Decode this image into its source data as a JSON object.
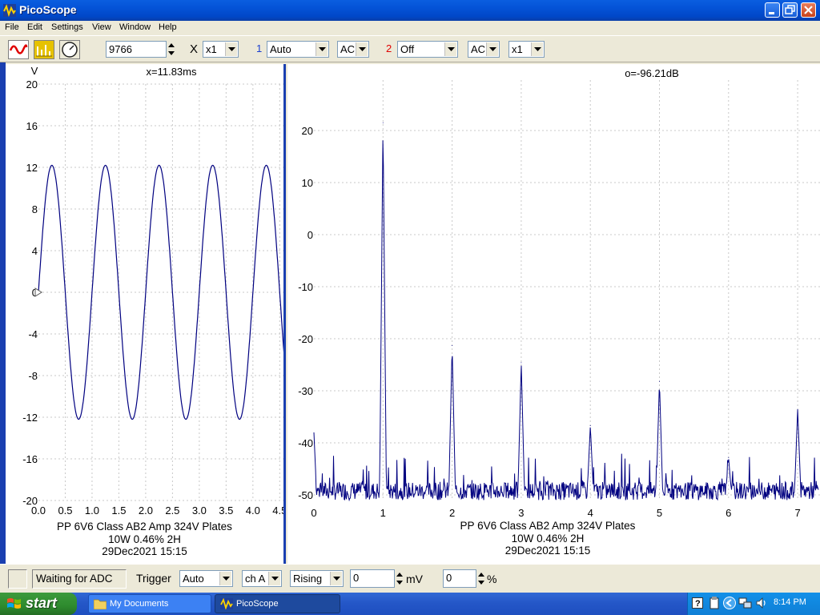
{
  "window": {
    "title": "PicoScope"
  },
  "menu": [
    "File",
    "Edit",
    "Settings",
    "View",
    "Window",
    "Help"
  ],
  "toolbar": {
    "timebase_value": "9766",
    "x_symbol": "X",
    "x_multiplier": "x1",
    "ch1_number": "1",
    "ch1_range": "Auto",
    "ch1_coupling": "AC",
    "ch2_number": "2",
    "ch2_range": "Off",
    "ch2_coupling": "AC",
    "ch2_multiplier": "x1",
    "ch1_color": "#1a3fd0",
    "ch2_color": "#e00000"
  },
  "scope_view": {
    "unit_label": "V",
    "cursor_readout": "x=11.83ms",
    "zero_marker": "0",
    "caption": [
      "PP 6V6 Class AB2 Amp 324V Plates",
      "10W 0.46% 2H",
      "29Dec2021  15:15"
    ]
  },
  "spectrum_view": {
    "cursor_readout": "o=-96.21dB",
    "caption": [
      "PP 6V6 Class AB2 Amp 324V Plates",
      "10W 0.46% 2H",
      "29Dec2021  15:15"
    ]
  },
  "chart_data": [
    {
      "type": "line",
      "xlim": [
        0,
        4.6
      ],
      "ylim": [
        -20,
        20
      ],
      "x_ticks": [
        "0.0",
        "0.5",
        "1.0",
        "1.5",
        "2.0",
        "2.5",
        "3.0",
        "3.5",
        "4.0",
        "4.5"
      ],
      "y_ticks": [
        "20",
        "16",
        "12",
        "8",
        "4",
        "0",
        "-4",
        "-8",
        "-12",
        "-16",
        "-20"
      ],
      "ylabel": "V",
      "grid": true,
      "series": [
        {
          "waveform": "sine",
          "amplitude": 12.2,
          "period": 1.0,
          "x_at_zero_crossing": 0.0
        }
      ],
      "line_color": "#000080"
    },
    {
      "type": "line",
      "xlim": [
        0,
        7.3
      ],
      "ylim": [
        -51,
        25
      ],
      "x_ticks": [
        "0",
        "1",
        "2",
        "3",
        "4",
        "5",
        "6",
        "7"
      ],
      "y_ticks": [
        "20",
        "10",
        "0",
        "-10",
        "-20",
        "-30",
        "-40",
        "-50"
      ],
      "grid": true,
      "floor": -51,
      "harmonics": [
        {
          "x": 1,
          "y": 21.5
        },
        {
          "x": 2,
          "y": -21.3
        },
        {
          "x": 3,
          "y": -24.6
        },
        {
          "x": 4,
          "y": -36.7
        },
        {
          "x": 5,
          "y": -28.2
        },
        {
          "x": 6,
          "y": -42.8
        },
        {
          "x": 7,
          "y": -33.6
        }
      ],
      "line_color": "#000080"
    }
  ],
  "status": {
    "adc_text": "Waiting for ADC",
    "trigger_label": "Trigger",
    "trigger_mode": "Auto",
    "trigger_channel": "ch A",
    "trigger_edge": "Rising",
    "threshold_value": "0",
    "threshold_unit": "mV",
    "delay_value": "0",
    "delay_unit": "%"
  },
  "taskbar": {
    "start_label": "start",
    "tasks": [
      "My Documents",
      "PicoScope"
    ],
    "time": "8:14 PM"
  }
}
